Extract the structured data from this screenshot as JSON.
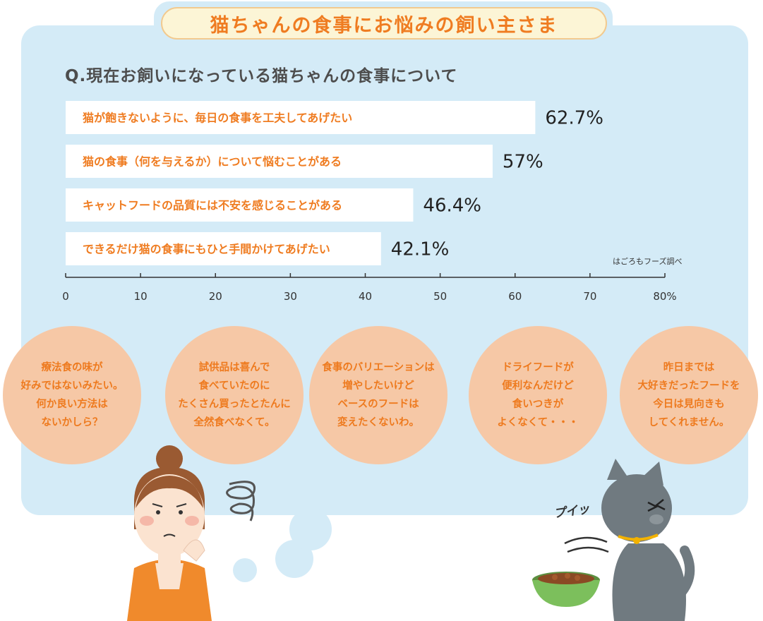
{
  "header": {
    "title": "猫ちゃんの食事にお悩みの飼い主さま"
  },
  "chart_data": {
    "type": "bar",
    "orientation": "horizontal",
    "title": "Q.現在お飼いになっている猫ちゃんの食事について",
    "categories": [
      "猫が飽きないように、毎日の食事を工夫してあげたい",
      "猫の食事（何を与えるか）について悩むことがある",
      "キャットフードの品質には不安を感じることがある",
      "できるだけ猫の食事にもひと手間かけてあげたい"
    ],
    "values": [
      62.7,
      57,
      46.4,
      42.1
    ],
    "value_labels": [
      "62.7%",
      "57%",
      "46.4%",
      "42.1%"
    ],
    "xlim": [
      0,
      80
    ],
    "x_ticks": [
      0,
      10,
      20,
      30,
      40,
      50,
      60,
      70,
      80
    ],
    "x_tick_labels": [
      "0",
      "10",
      "20",
      "30",
      "40",
      "50",
      "60",
      "70",
      "80%"
    ],
    "source": "はごろもフーズ調べ",
    "bar_color": "#ffffff",
    "label_color": "#ef7c21",
    "grid": false
  },
  "bubbles": [
    {
      "lines": [
        "療法食の味が",
        "好みではないみたい。",
        "何か良い方法は",
        "ないかしら？"
      ]
    },
    {
      "lines": [
        "試供品は喜んで",
        "食べていたのに",
        "たくさん買ったとたんに",
        "全然食べなくて。"
      ]
    },
    {
      "lines": [
        "食事のバリエーションは",
        "増やしたいけど",
        "ベースのフードは",
        "変えたくないわ。"
      ]
    },
    {
      "lines": [
        "ドライフードが",
        "便利なんだけど",
        "食いつきが",
        "よくなくて・・・"
      ]
    },
    {
      "lines": [
        "昨日までは",
        "大好きだったフードを",
        "今日は見向きも",
        "してくれません。"
      ]
    }
  ],
  "cat": {
    "sound": "プイッ"
  },
  "colors": {
    "panel": "#d4ebf7",
    "accent": "#ef7c21",
    "bubble": "#f6c8a6"
  }
}
